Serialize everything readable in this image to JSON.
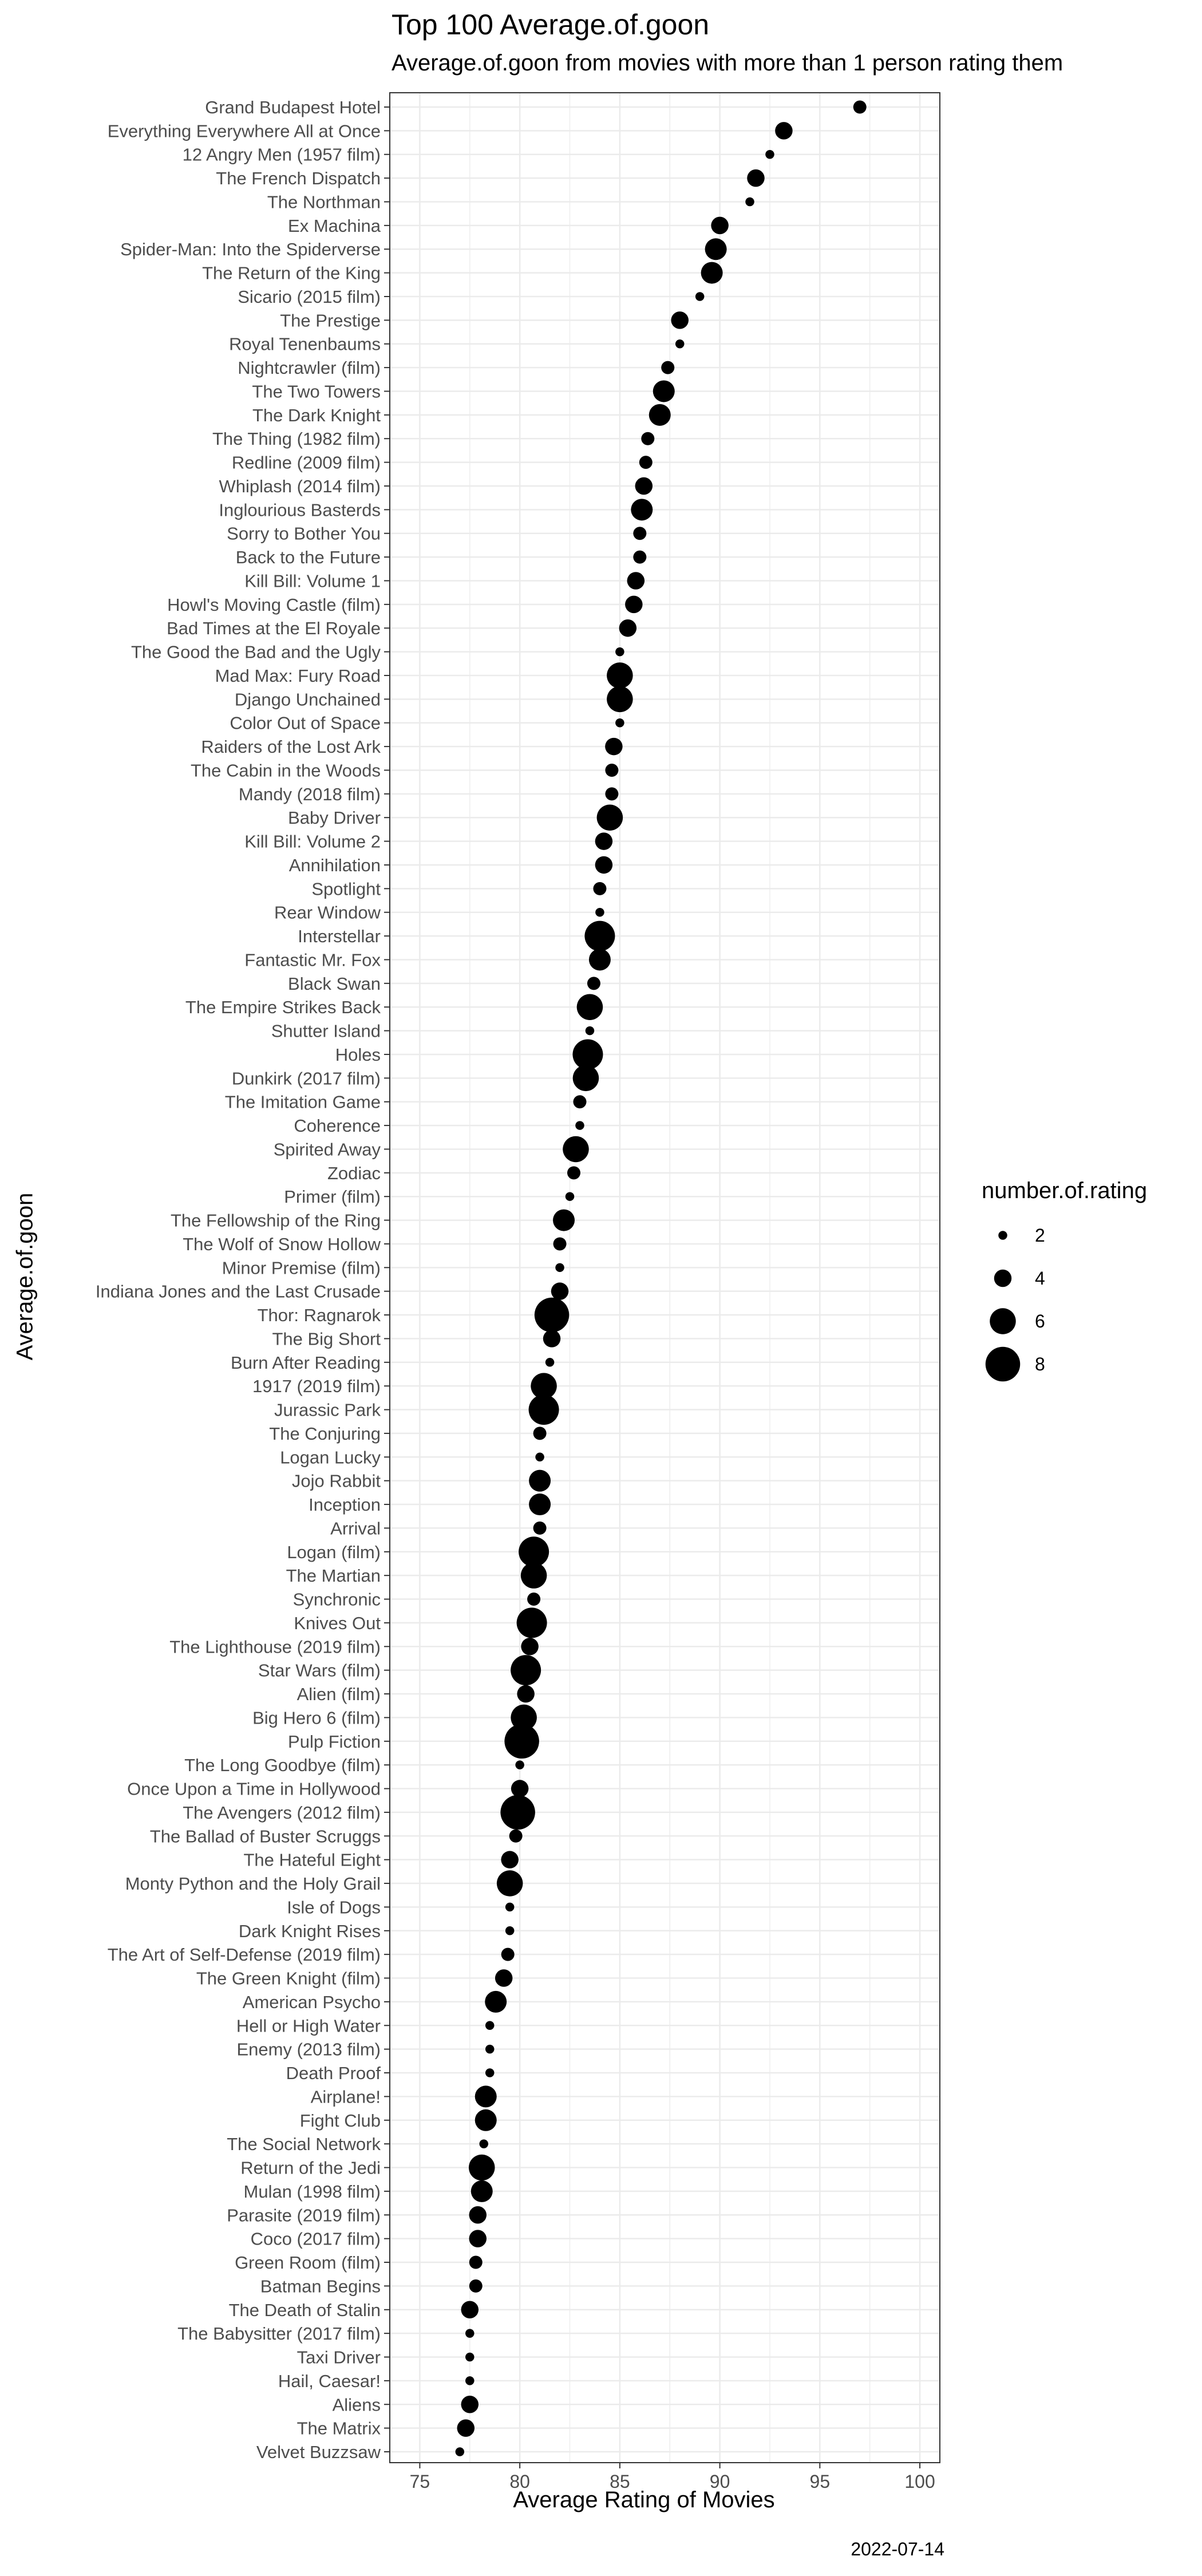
{
  "chart_data": {
    "type": "scatter",
    "title": "Top 100 Average.of.goon",
    "subtitle": "Average.of.goon from movies with more than 1 person rating them",
    "xlabel": "Average Rating of Movies",
    "ylabel": "Average.of.goon",
    "caption": "2022-07-14",
    "xlim": [
      73.5,
      101
    ],
    "xticks": [
      75,
      80,
      85,
      90,
      95,
      100
    ],
    "grid": true,
    "legend": {
      "title": "number.of.rating",
      "position": "right",
      "sizes": [
        2,
        4,
        6,
        8
      ]
    },
    "points": [
      {
        "movie": "Grand Budapest Hotel",
        "avg": 97.0,
        "n": 3
      },
      {
        "movie": "Everything Everywhere All at Once",
        "avg": 93.2,
        "n": 4
      },
      {
        "movie": "12 Angry Men (1957 film)",
        "avg": 92.5,
        "n": 2
      },
      {
        "movie": "The French Dispatch",
        "avg": 91.8,
        "n": 4
      },
      {
        "movie": "The Northman",
        "avg": 91.5,
        "n": 2
      },
      {
        "movie": "Ex Machina",
        "avg": 90.0,
        "n": 4
      },
      {
        "movie": "Spider-Man: Into the Spiderverse",
        "avg": 89.8,
        "n": 5
      },
      {
        "movie": "The Return of the King",
        "avg": 89.6,
        "n": 5
      },
      {
        "movie": "Sicario (2015 film)",
        "avg": 89.0,
        "n": 2
      },
      {
        "movie": "The Prestige",
        "avg": 88.0,
        "n": 4
      },
      {
        "movie": "Royal Tenenbaums",
        "avg": 88.0,
        "n": 2
      },
      {
        "movie": "Nightcrawler (film)",
        "avg": 87.4,
        "n": 3
      },
      {
        "movie": "The Two Towers",
        "avg": 87.2,
        "n": 5
      },
      {
        "movie": "The Dark Knight",
        "avg": 87.0,
        "n": 5
      },
      {
        "movie": "The Thing (1982 film)",
        "avg": 86.4,
        "n": 3
      },
      {
        "movie": "Redline (2009 film)",
        "avg": 86.3,
        "n": 3
      },
      {
        "movie": "Whiplash (2014 film)",
        "avg": 86.2,
        "n": 4
      },
      {
        "movie": "Inglourious Basterds",
        "avg": 86.1,
        "n": 5
      },
      {
        "movie": "Sorry to Bother You",
        "avg": 86.0,
        "n": 3
      },
      {
        "movie": "Back to the Future",
        "avg": 86.0,
        "n": 3
      },
      {
        "movie": "Kill Bill: Volume 1",
        "avg": 85.8,
        "n": 4
      },
      {
        "movie": "Howl's Moving Castle (film)",
        "avg": 85.7,
        "n": 4
      },
      {
        "movie": "Bad Times at the El Royale",
        "avg": 85.4,
        "n": 4
      },
      {
        "movie": "The Good the Bad and the Ugly",
        "avg": 85.0,
        "n": 2
      },
      {
        "movie": "Mad Max: Fury Road",
        "avg": 85.0,
        "n": 6
      },
      {
        "movie": "Django Unchained",
        "avg": 85.0,
        "n": 6
      },
      {
        "movie": "Color Out of Space",
        "avg": 85.0,
        "n": 2
      },
      {
        "movie": "Raiders of the Lost Ark",
        "avg": 84.7,
        "n": 4
      },
      {
        "movie": "The Cabin in the Woods",
        "avg": 84.6,
        "n": 3
      },
      {
        "movie": "Mandy (2018 film)",
        "avg": 84.6,
        "n": 3
      },
      {
        "movie": "Baby Driver",
        "avg": 84.5,
        "n": 6
      },
      {
        "movie": "Kill Bill: Volume 2",
        "avg": 84.2,
        "n": 4
      },
      {
        "movie": "Annihilation ",
        "avg": 84.2,
        "n": 4
      },
      {
        "movie": "Spotlight",
        "avg": 84.0,
        "n": 3
      },
      {
        "movie": "Rear Window",
        "avg": 84.0,
        "n": 2
      },
      {
        "movie": "Interstellar",
        "avg": 84.0,
        "n": 7
      },
      {
        "movie": "Fantastic Mr. Fox",
        "avg": 84.0,
        "n": 5
      },
      {
        "movie": "Black Swan",
        "avg": 83.7,
        "n": 3
      },
      {
        "movie": "The Empire Strikes Back",
        "avg": 83.5,
        "n": 6
      },
      {
        "movie": "Shutter Island",
        "avg": 83.5,
        "n": 2
      },
      {
        "movie": "Holes",
        "avg": 83.4,
        "n": 7
      },
      {
        "movie": "Dunkirk (2017 film)",
        "avg": 83.3,
        "n": 6
      },
      {
        "movie": "The Imitation Game",
        "avg": 83.0,
        "n": 3
      },
      {
        "movie": "Coherence",
        "avg": 83.0,
        "n": 2
      },
      {
        "movie": "Spirited Away",
        "avg": 82.8,
        "n": 6
      },
      {
        "movie": "Zodiac",
        "avg": 82.7,
        "n": 3
      },
      {
        "movie": "Primer (film)",
        "avg": 82.5,
        "n": 2
      },
      {
        "movie": "The Fellowship of the Ring",
        "avg": 82.2,
        "n": 5
      },
      {
        "movie": "The Wolf of Snow Hollow",
        "avg": 82.0,
        "n": 3
      },
      {
        "movie": "Minor Premise (film)",
        "avg": 82.0,
        "n": 2
      },
      {
        "movie": "Indiana Jones and the Last Crusade",
        "avg": 82.0,
        "n": 4
      },
      {
        "movie": "Thor: Ragnarok",
        "avg": 81.6,
        "n": 8
      },
      {
        "movie": "The Big Short",
        "avg": 81.6,
        "n": 4
      },
      {
        "movie": "Burn After Reading",
        "avg": 81.5,
        "n": 2
      },
      {
        "movie": "1917 (2019 film)",
        "avg": 81.2,
        "n": 6
      },
      {
        "movie": "Jurassic Park",
        "avg": 81.2,
        "n": 7
      },
      {
        "movie": "The Conjuring ",
        "avg": 81.0,
        "n": 3
      },
      {
        "movie": "Logan Lucky",
        "avg": 81.0,
        "n": 2
      },
      {
        "movie": "Jojo Rabbit",
        "avg": 81.0,
        "n": 5
      },
      {
        "movie": "Inception",
        "avg": 81.0,
        "n": 5
      },
      {
        "movie": "Arrival",
        "avg": 81.0,
        "n": 3
      },
      {
        "movie": "Logan (film)",
        "avg": 80.7,
        "n": 7
      },
      {
        "movie": "The Martian",
        "avg": 80.7,
        "n": 6
      },
      {
        "movie": "Synchronic",
        "avg": 80.7,
        "n": 3
      },
      {
        "movie": "Knives Out",
        "avg": 80.6,
        "n": 7
      },
      {
        "movie": "The Lighthouse (2019 film)",
        "avg": 80.5,
        "n": 4
      },
      {
        "movie": "Star Wars (film)",
        "avg": 80.3,
        "n": 7
      },
      {
        "movie": "Alien (film)",
        "avg": 80.3,
        "n": 4
      },
      {
        "movie": "Big Hero 6 (film)",
        "avg": 80.2,
        "n": 6
      },
      {
        "movie": "Pulp Fiction",
        "avg": 80.1,
        "n": 8
      },
      {
        "movie": "The Long Goodbye (film)",
        "avg": 80.0,
        "n": 2
      },
      {
        "movie": "Once Upon a Time in Hollywood",
        "avg": 80.0,
        "n": 4
      },
      {
        "movie": "The Avengers (2012 film)",
        "avg": 79.9,
        "n": 8
      },
      {
        "movie": "The Ballad of Buster Scruggs",
        "avg": 79.8,
        "n": 3
      },
      {
        "movie": "The Hateful Eight",
        "avg": 79.5,
        "n": 4
      },
      {
        "movie": "Monty Python and the Holy Grail",
        "avg": 79.5,
        "n": 6
      },
      {
        "movie": "Isle of Dogs",
        "avg": 79.5,
        "n": 2
      },
      {
        "movie": "Dark Knight Rises",
        "avg": 79.5,
        "n": 2
      },
      {
        "movie": "The Art of Self-Defense (2019 film)",
        "avg": 79.4,
        "n": 3
      },
      {
        "movie": "The Green Knight (film)",
        "avg": 79.2,
        "n": 4
      },
      {
        "movie": "American Psycho",
        "avg": 78.8,
        "n": 5
      },
      {
        "movie": "Hell or High Water ",
        "avg": 78.5,
        "n": 2
      },
      {
        "movie": "Enemy (2013 film)",
        "avg": 78.5,
        "n": 2
      },
      {
        "movie": "Death Proof",
        "avg": 78.5,
        "n": 2
      },
      {
        "movie": "Airplane!",
        "avg": 78.3,
        "n": 5
      },
      {
        "movie": "Fight Club",
        "avg": 78.3,
        "n": 5
      },
      {
        "movie": "The Social Network",
        "avg": 78.2,
        "n": 2
      },
      {
        "movie": "Return of the Jedi",
        "avg": 78.1,
        "n": 6
      },
      {
        "movie": "Mulan (1998 film)",
        "avg": 78.1,
        "n": 5
      },
      {
        "movie": "Parasite (2019 film)",
        "avg": 77.9,
        "n": 4
      },
      {
        "movie": "Coco (2017 film)",
        "avg": 77.9,
        "n": 4
      },
      {
        "movie": "Green Room (film)",
        "avg": 77.8,
        "n": 3
      },
      {
        "movie": "Batman Begins",
        "avg": 77.8,
        "n": 3
      },
      {
        "movie": "The Death of Stalin",
        "avg": 77.5,
        "n": 4
      },
      {
        "movie": "The Babysitter (2017 film)",
        "avg": 77.5,
        "n": 2
      },
      {
        "movie": "Taxi Driver",
        "avg": 77.5,
        "n": 2
      },
      {
        "movie": "Hail, Caesar!",
        "avg": 77.5,
        "n": 2
      },
      {
        "movie": "Aliens ",
        "avg": 77.5,
        "n": 4
      },
      {
        "movie": "The Matrix",
        "avg": 77.3,
        "n": 4
      },
      {
        "movie": "Velvet Buzzsaw",
        "avg": 77.0,
        "n": 2
      }
    ]
  }
}
